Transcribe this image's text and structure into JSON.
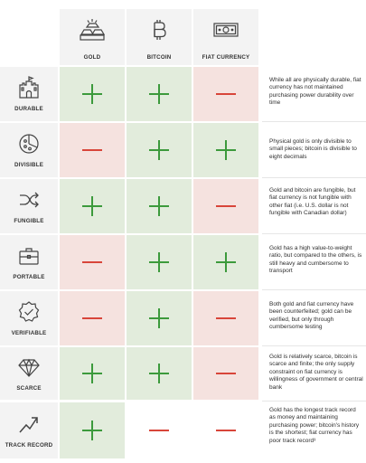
{
  "columns": [
    {
      "label": "GOLD",
      "icon": "gold-bars-icon"
    },
    {
      "label": "BITCOIN",
      "icon": "bitcoin-icon"
    },
    {
      "label": "FIAT CURRENCY",
      "icon": "banknote-icon"
    }
  ],
  "rows": [
    {
      "label": "DURABLE",
      "icon": "castle-icon",
      "values": [
        "yes",
        "yes",
        "no"
      ],
      "note": "While all are physically durable, fiat currency has not maintained purchasing power durability over time"
    },
    {
      "label": "DIVISIBLE",
      "icon": "pizza-slice-icon",
      "values": [
        "no",
        "yes",
        "yes"
      ],
      "note": "Physical gold is only divisible to small pieces; bitcoin is divisible to eight decimals"
    },
    {
      "label": "FUNGIBLE",
      "icon": "shuffle-arrows-icon",
      "values": [
        "yes",
        "yes",
        "no"
      ],
      "note": "Gold and bitcoin are fungible, but fiat currency is not fungible with other fiat (i.e. U.S. dollar is not fungible with Canadian dollar)"
    },
    {
      "label": "PORTABLE",
      "icon": "briefcase-icon",
      "values": [
        "no",
        "yes",
        "yes"
      ],
      "note": "Gold has a high value-to-weight ratio, but compared to the others, is still heavy and cumbersome to transport"
    },
    {
      "label": "VERIFIABLE",
      "icon": "verified-badge-icon",
      "values": [
        "no",
        "yes",
        "no"
      ],
      "note": "Both gold and fiat currency have been counterfeited; gold can be verified, but only through cumbersome testing"
    },
    {
      "label": "SCARCE",
      "icon": "diamond-icon",
      "values": [
        "yes",
        "yes",
        "no"
      ],
      "note": "Gold is relatively scarce, bitcoin is scarce and finite; the only supply constraint on fiat currency is willingness of government or central bank"
    },
    {
      "label": "TRACK RECORD",
      "icon": "trend-up-icon",
      "values": [
        "yes",
        "no",
        "no"
      ],
      "note": "Gold has the longest track record as money and maintaining purchasing power; bitcoin's history is the shortest; fiat currency has poor track record³"
    }
  ],
  "colors": {
    "yes_bg": "#e2ecdc",
    "no_bg": "#f5e2df",
    "plus": "#3c9a3c",
    "minus": "#d8453a",
    "label_bg": "#f3f3f3"
  }
}
